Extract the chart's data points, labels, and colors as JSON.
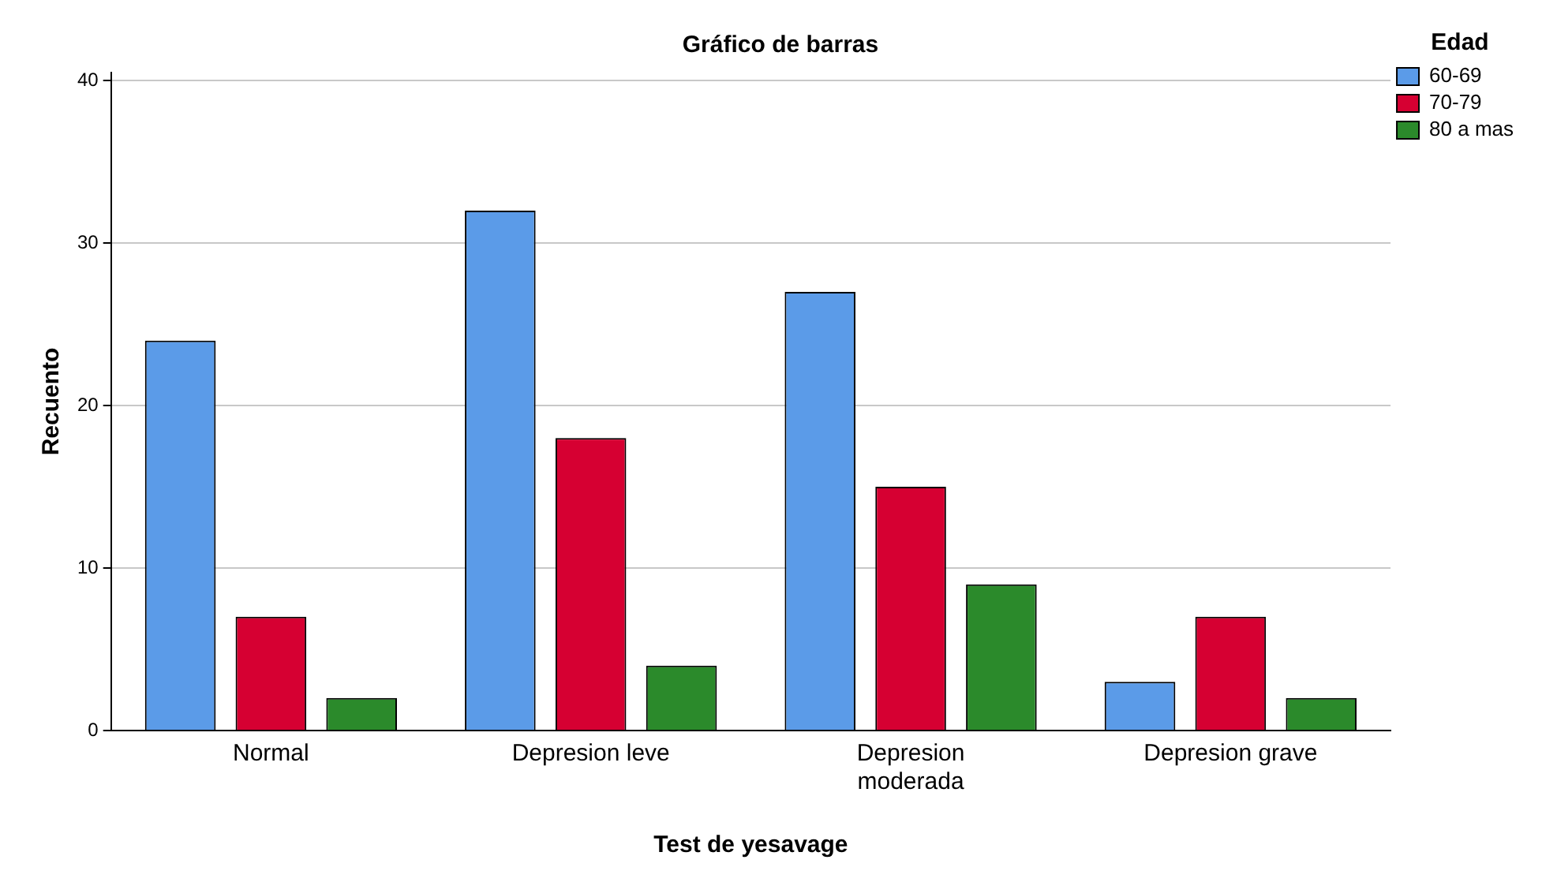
{
  "chart_data": {
    "type": "bar",
    "title": "Gráfico de barras",
    "xlabel": "Test de yesavage",
    "ylabel": "Recuento",
    "legend_title": "Edad",
    "categories": [
      "Normal",
      "Depresion leve",
      "Depresion\nmoderada",
      "Depresion grave"
    ],
    "series": [
      {
        "name": "60-69",
        "color": "#5b9be8",
        "values": [
          24,
          32,
          27,
          3
        ]
      },
      {
        "name": "70-79",
        "color": "#d60032",
        "values": [
          7,
          18,
          15,
          7
        ]
      },
      {
        "name": "80 a mas",
        "color": "#2b8a2b",
        "values": [
          2,
          4,
          9,
          2
        ]
      }
    ],
    "ylim": [
      0,
      40.5
    ],
    "yticks": [
      0,
      10,
      20,
      30,
      40
    ],
    "grid": "y",
    "legend": "top right"
  }
}
